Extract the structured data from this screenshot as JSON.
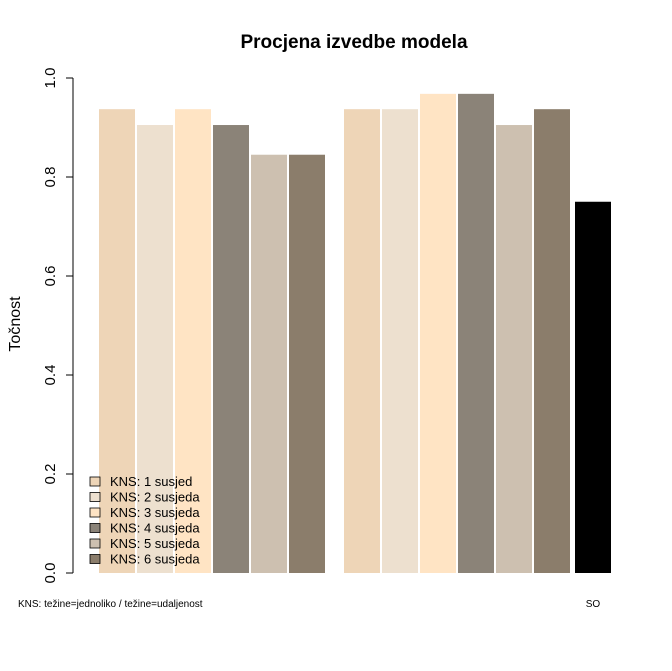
{
  "chart_data": {
    "type": "bar",
    "title": "Procjena izvedbe modela",
    "ylabel": "Točnost",
    "ylim": [
      0,
      1
    ],
    "yticks": [
      "0.0",
      "0.2",
      "0.4",
      "0.6",
      "0.8",
      "1.0"
    ],
    "grid": false,
    "legend_position": "bottom-left",
    "groups": [
      {
        "label": "KNS: težine=jednoliko / težine=udaljenost",
        "subgroups": [
          {
            "values": [
              0.937,
              0.905,
              0.937,
              0.905,
              0.845,
              0.845
            ]
          },
          {
            "values": [
              0.937,
              0.937,
              0.968,
              0.968,
              0.905,
              0.937
            ]
          }
        ]
      },
      {
        "label": "SO",
        "subgroups": [
          {
            "values": [
              0.75
            ]
          }
        ]
      }
    ],
    "series": [
      {
        "name": "KNS: 1 susjed",
        "color": "#EED5B7"
      },
      {
        "name": "KNS: 2 susjeda",
        "color": "#EDE0CF"
      },
      {
        "name": "KNS: 3 susjeda",
        "color": "#FFE4C4"
      },
      {
        "name": "KNS: 4 susjeda",
        "color": "#8B8378"
      },
      {
        "name": "KNS: 5 susjeda",
        "color": "#CDC0B0"
      },
      {
        "name": "KNS: 6 susjeda",
        "color": "#8B7D6B"
      }
    ],
    "so_color": "#000000"
  }
}
